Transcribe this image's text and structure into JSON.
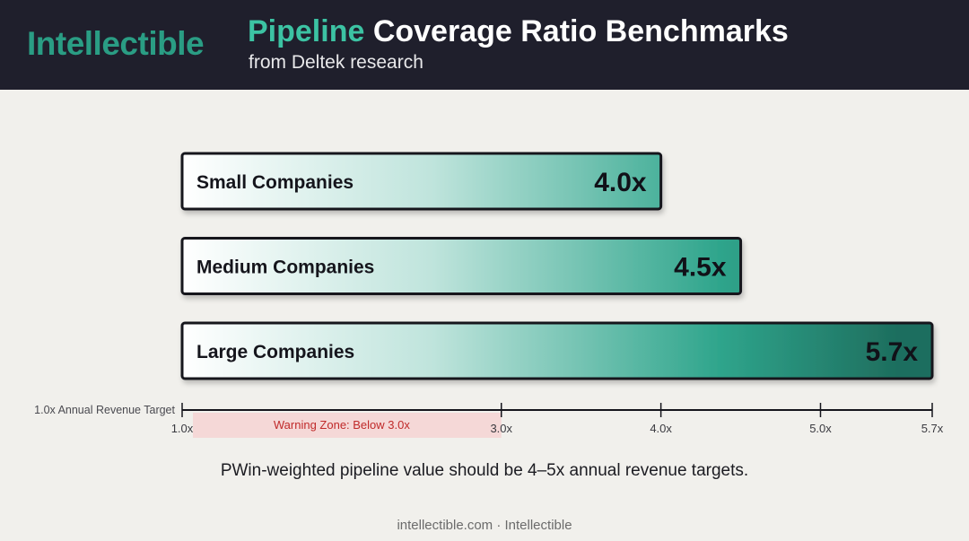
{
  "brand": {
    "logo": "Intellectible"
  },
  "header": {
    "title_accent": "Pipeline",
    "title_rest": " Coverage Ratio Benchmarks",
    "subtitle": "from Deltek research"
  },
  "colors": {
    "header_bg": "#1f1f2c",
    "accent": "#2a9d84",
    "bar_light": "#ffffff",
    "bar_dark": "#1e6e5e",
    "warning_fill": "#f6d4d4",
    "warning_text": "#c02a2a"
  },
  "chart_data": {
    "type": "bar",
    "orientation": "horizontal",
    "categories": [
      "Small Companies",
      "Medium Companies",
      "Large Companies"
    ],
    "values": [
      4.0,
      4.5,
      5.7
    ],
    "value_labels": [
      "4.0x",
      "4.5x",
      "5.7x"
    ],
    "xlim": [
      1.0,
      5.7
    ],
    "ticks": [
      1.0,
      3.0,
      4.0,
      5.0,
      5.7
    ],
    "tick_labels": [
      "1.0x",
      "3.0x",
      "4.0x",
      "5.0x",
      "5.7x"
    ],
    "axis_label": "1.0x Annual Revenue Target",
    "warning_zone": {
      "from": 1.0,
      "to": 3.0,
      "label": "Warning Zone: Below 3.0x"
    }
  },
  "footnote": "PWin-weighted pipeline value should be 4–5x annual revenue targets.",
  "footer": "intellectible.com · Intellectible"
}
